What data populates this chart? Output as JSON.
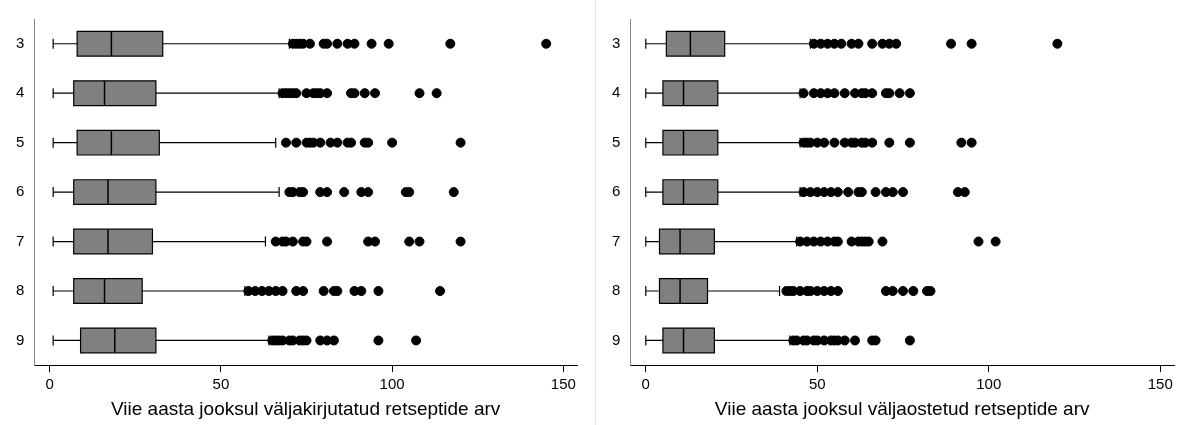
{
  "chart_data": [
    {
      "type": "box",
      "orientation": "horizontal",
      "xlabel": "Viie aasta jooksul väljakirjutatud retseptide arv",
      "categories": [
        "3",
        "4",
        "5",
        "6",
        "7",
        "8",
        "9"
      ],
      "color": "#808080",
      "xlim": [
        -4.5,
        154
      ],
      "xticks": [
        0,
        50,
        100,
        150
      ],
      "grid": false,
      "legend": false,
      "boxes": [
        {
          "low": 1,
          "q1": 8,
          "median": 18,
          "q3": 33,
          "high": 70,
          "outliers": [
            71,
            72,
            73,
            74,
            76,
            80,
            81,
            84,
            87,
            89,
            94,
            99,
            117,
            145
          ]
        },
        {
          "low": 1,
          "q1": 7,
          "median": 16,
          "q3": 31,
          "high": 67,
          "outliers": [
            68,
            69,
            70,
            71,
            72,
            75,
            77,
            78,
            79,
            81,
            88,
            89,
            92,
            95,
            108,
            113
          ]
        },
        {
          "low": 1,
          "q1": 8,
          "median": 18,
          "q3": 32,
          "high": 66,
          "outliers": [
            69,
            72,
            75,
            76,
            77,
            79,
            82,
            84,
            87,
            88,
            92,
            93,
            100,
            120
          ]
        },
        {
          "low": 1,
          "q1": 7,
          "median": 17,
          "q3": 31,
          "high": 67,
          "outliers": [
            70,
            71,
            73,
            74,
            79,
            81,
            86,
            91,
            93,
            104,
            105,
            118
          ]
        },
        {
          "low": 1,
          "q1": 7,
          "median": 17,
          "q3": 30,
          "high": 63,
          "outliers": [
            66,
            68,
            69,
            71,
            74,
            75,
            81,
            93,
            95,
            105,
            108,
            120
          ]
        },
        {
          "low": 1,
          "q1": 7,
          "median": 16,
          "q3": 27,
          "high": 57,
          "outliers": [
            58,
            60,
            62,
            64,
            66,
            68,
            72,
            74,
            80,
            83,
            84,
            89,
            91,
            96,
            114
          ]
        },
        {
          "low": 1,
          "q1": 9,
          "median": 19,
          "q3": 31,
          "high": 64,
          "outliers": [
            65,
            66,
            67,
            68,
            70,
            71,
            73,
            74,
            75,
            79,
            81,
            83,
            96,
            107
          ]
        }
      ]
    },
    {
      "type": "box",
      "orientation": "horizontal",
      "xlabel": "Viie aasta jooksul väljaostetud retseptide arv",
      "categories": [
        "3",
        "4",
        "5",
        "6",
        "7",
        "8",
        "9"
      ],
      "color": "#808080",
      "xlim": [
        -4.5,
        154
      ],
      "xticks": [
        0,
        50,
        100,
        150
      ],
      "grid": false,
      "legend": false,
      "boxes": [
        {
          "low": 0,
          "q1": 6,
          "median": 13,
          "q3": 23,
          "high": 48,
          "outliers": [
            49,
            51,
            53,
            55,
            57,
            60,
            62,
            66,
            69,
            71,
            73,
            89,
            95,
            120
          ]
        },
        {
          "low": 0,
          "q1": 5,
          "median": 11,
          "q3": 21,
          "high": 45,
          "outliers": [
            46,
            49,
            51,
            53,
            55,
            58,
            61,
            63,
            64,
            66,
            70,
            71,
            74,
            77
          ]
        },
        {
          "low": 0,
          "q1": 5,
          "median": 11,
          "q3": 21,
          "high": 45,
          "outliers": [
            46,
            47,
            48,
            50,
            52,
            55,
            58,
            60,
            61,
            63,
            64,
            66,
            71,
            77,
            92,
            95
          ]
        },
        {
          "low": 0,
          "q1": 5,
          "median": 11,
          "q3": 21,
          "high": 45,
          "outliers": [
            46,
            48,
            50,
            52,
            54,
            56,
            59,
            62,
            63,
            67,
            70,
            72,
            75,
            91,
            93
          ]
        },
        {
          "low": 0,
          "q1": 4,
          "median": 10,
          "q3": 20,
          "high": 44,
          "outliers": [
            45,
            47,
            49,
            51,
            53,
            55,
            56,
            60,
            62,
            63,
            64,
            65,
            69,
            97,
            102
          ]
        },
        {
          "low": 0,
          "q1": 4,
          "median": 10,
          "q3": 18,
          "high": 39,
          "outliers": [
            41,
            42,
            43,
            45,
            47,
            48,
            50,
            52,
            54,
            56,
            70,
            72,
            75,
            78,
            82,
            83
          ]
        },
        {
          "low": 0,
          "q1": 5,
          "median": 11,
          "q3": 20,
          "high": 42,
          "outliers": [
            43,
            44,
            46,
            47,
            49,
            50,
            52,
            54,
            55,
            56,
            58,
            61,
            66,
            67,
            77
          ]
        }
      ]
    }
  ]
}
